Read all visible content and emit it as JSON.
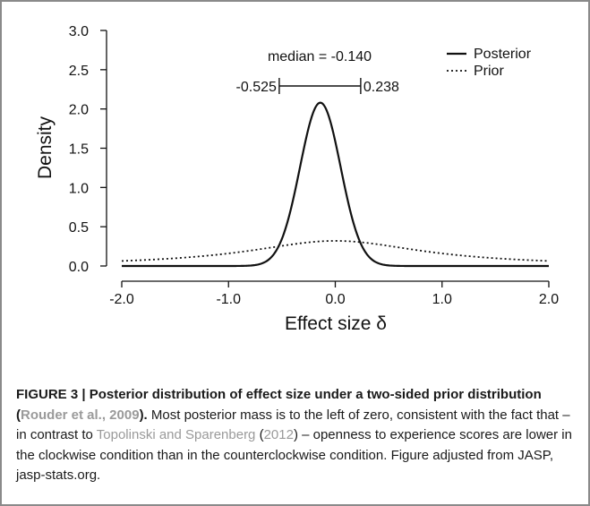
{
  "chart_data": {
    "type": "line",
    "xlabel": "Effect size δ",
    "ylabel": "Density",
    "xlim": [
      -2.0,
      2.0
    ],
    "ylim": [
      0.0,
      3.0
    ],
    "xticks": [
      "-2.0",
      "-1.0",
      "0.0",
      "1.0",
      "2.0"
    ],
    "yticks": [
      "0.0",
      "0.5",
      "1.0",
      "1.5",
      "2.0",
      "2.5",
      "3.0"
    ],
    "grid": false,
    "legend_position": "top-right",
    "series": [
      {
        "name": "Posterior",
        "style": "solid",
        "distribution": "normal",
        "mean": -0.14,
        "sd": 0.19,
        "peak": 2.08
      },
      {
        "name": "Prior",
        "style": "dotted",
        "distribution": "cauchy",
        "location": 0.0,
        "scale": 1.0,
        "peak": 0.32
      }
    ],
    "annotations": {
      "median_text": "median = -0.140",
      "ci_lower": -0.525,
      "ci_upper": 0.238,
      "ci_lower_text": "-0.525",
      "ci_upper_text": "0.238"
    }
  },
  "caption": {
    "label": "FIGURE 3 | Posterior distribution of effect size under a two-sided prior distribution (",
    "citation1": "Rouder et al., 2009",
    "label_end": ").",
    "body_part1": " Most posterior mass is to the left of zero, consistent with the fact that –in contrast to ",
    "citation2": "Topolinski and Sparenberg",
    "body_part2": " (",
    "citation2_year": "2012",
    "body_part3": ") – openness to experience scores are lower in the clockwise condition than in the counterclockwise condition. Figure adjusted from JASP, jasp-stats.org."
  }
}
